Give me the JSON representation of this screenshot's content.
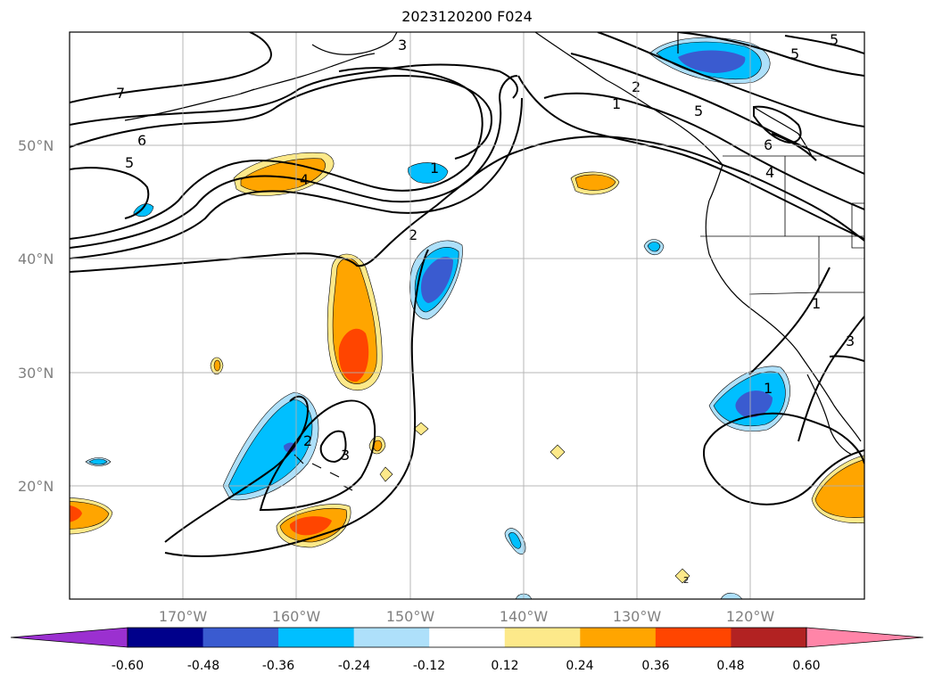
{
  "title": "2023120200 F024",
  "map": {
    "lon_range": [
      -180,
      -110
    ],
    "lat_range": [
      10,
      60
    ],
    "grid": true,
    "lat_labels": [
      "50°N",
      "40°N",
      "30°N",
      "20°N"
    ],
    "lon_labels": [
      "170°W",
      "160°W",
      "150°W",
      "140°W",
      "130°W",
      "120°W"
    ],
    "contour_labels": [
      "7",
      "6",
      "5",
      "4",
      "3",
      "2",
      "1",
      "2",
      "3",
      "2",
      "1",
      "5",
      "5",
      "6",
      "4",
      "5",
      "1",
      "1",
      "3",
      "2"
    ]
  },
  "colorbar": {
    "ticks": [
      "-0.60",
      "-0.48",
      "-0.36",
      "-0.24",
      "-0.12",
      "0.12",
      "0.24",
      "0.36",
      "0.48",
      "0.60"
    ],
    "colors": [
      "#9b30d0",
      "#00008b",
      "#3a5bd0",
      "#00bfff",
      "#aee0fa",
      "#ffffff",
      "#fde98a",
      "#ffa500",
      "#ff4500",
      "#b22222",
      "#ff85a8"
    ],
    "extend": "both"
  }
}
